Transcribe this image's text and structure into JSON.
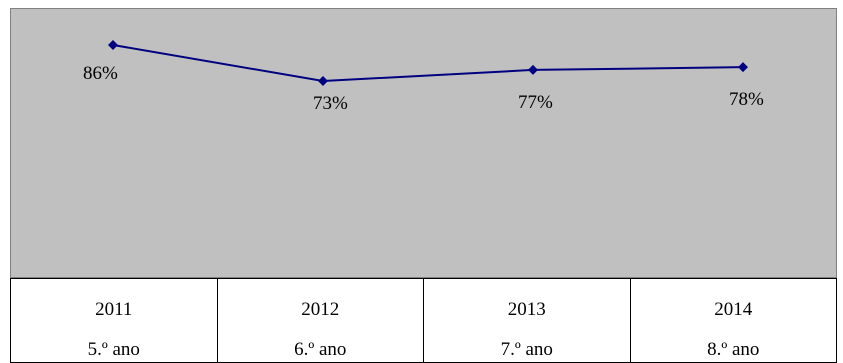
{
  "chart_data": {
    "type": "line",
    "categories": [
      "2011",
      "2012",
      "2013",
      "2014"
    ],
    "sub_categories": [
      "5.º ano",
      "6.º ano",
      "7.º ano",
      "8.º ano"
    ],
    "series": [
      {
        "values": [
          86,
          73,
          77,
          78
        ],
        "labels": [
          "86%",
          "73%",
          "77%",
          "78%"
        ]
      }
    ],
    "line_color": "#000080",
    "plot_background": "#c0c0c0",
    "grid": false,
    "legend": "none"
  }
}
